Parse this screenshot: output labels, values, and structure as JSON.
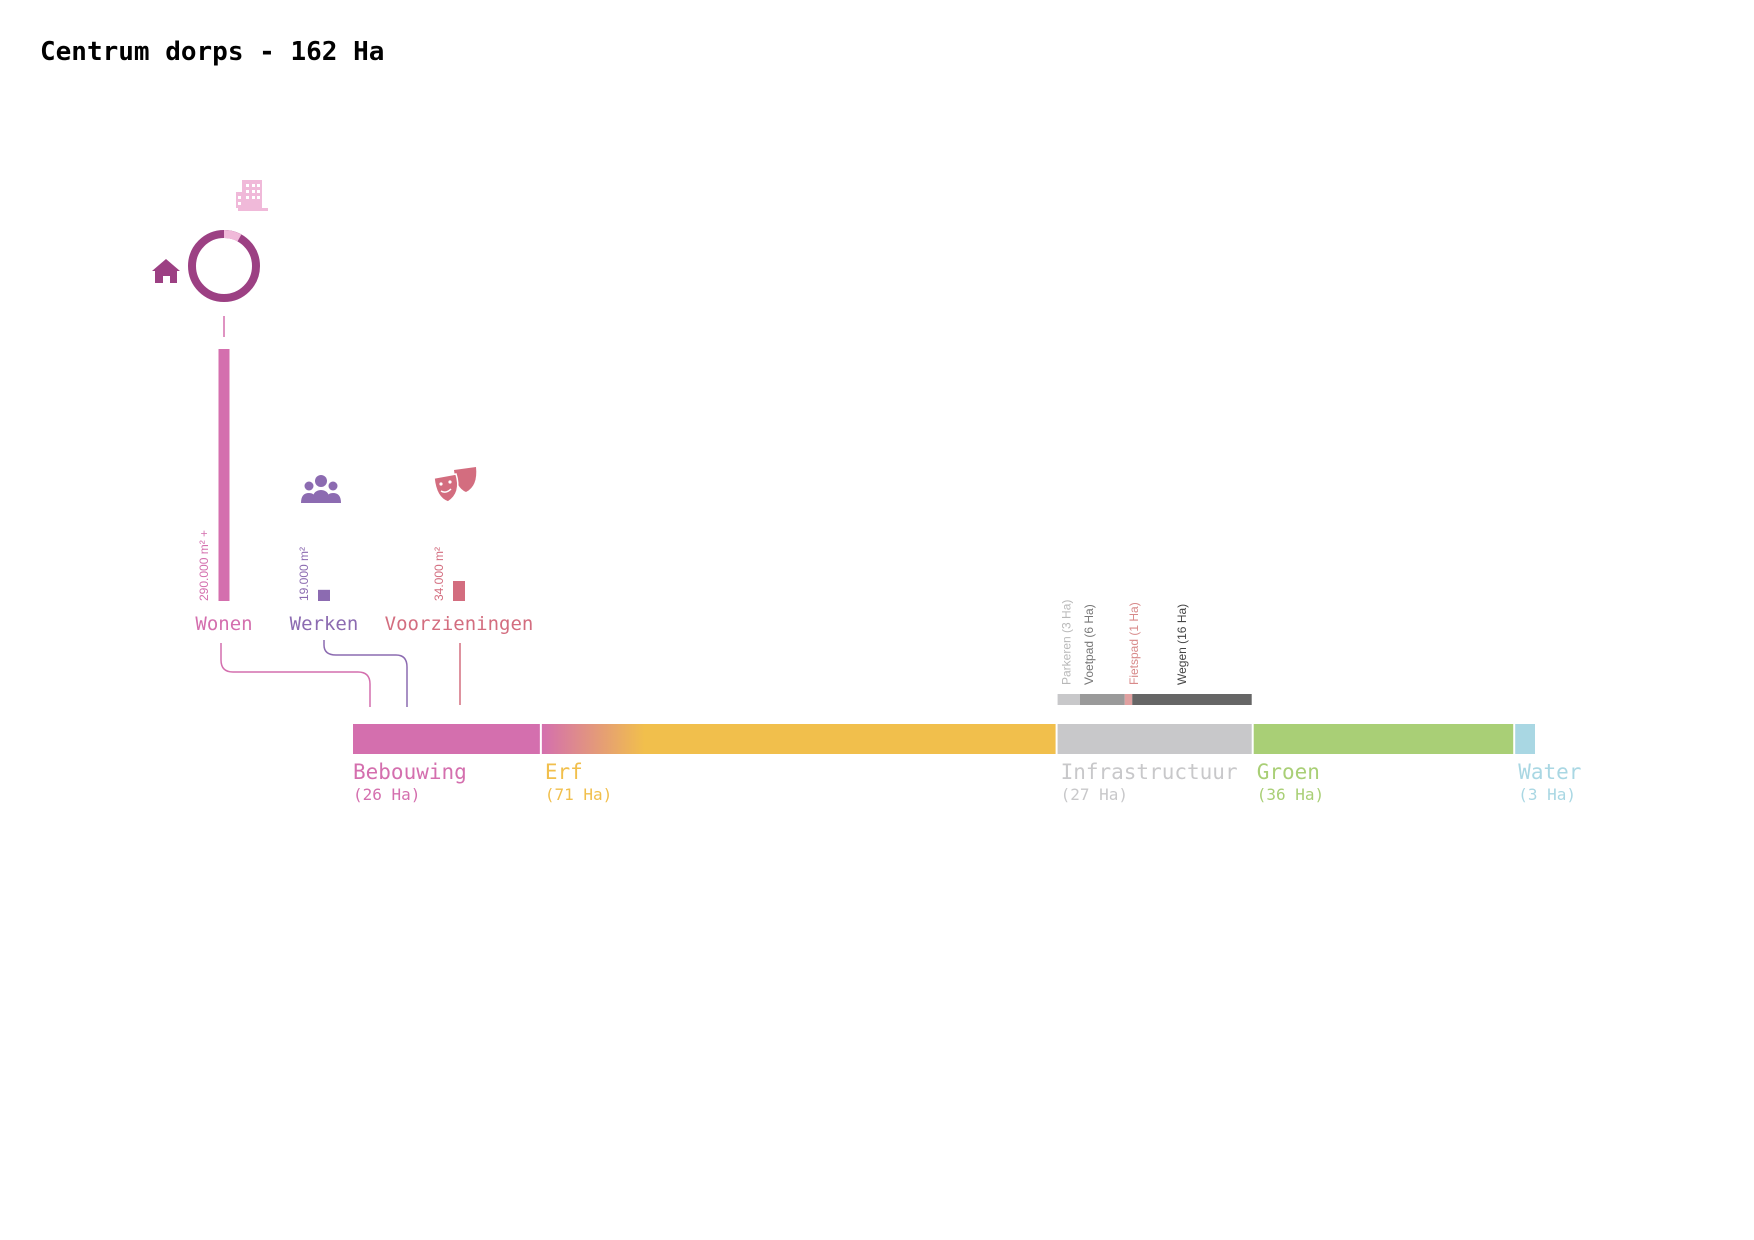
{
  "title": "Centrum dorps - 162 Ha",
  "colors": {
    "bebouwing": "#d46fae",
    "erf": "#f1bf4c",
    "infrastructuur": "#c8c8ca",
    "groen": "#a9cf76",
    "water": "#a9d7e3",
    "wonen": "#d46fae",
    "werken": "#8c6bb1",
    "voorzieningen": "#d36d7f",
    "ring_dark": "#9c4083",
    "ring_light": "#f0b9d9",
    "parkeren": "#c8c8ca",
    "voetpad": "#9a9a9a",
    "fietspad": "#e0a0a0",
    "wegen": "#666666"
  },
  "icons": {
    "house": "house-icon",
    "office": "office-building-icon",
    "people": "people-group-icon",
    "masks": "theater-masks-icon"
  },
  "chart_data": {
    "type": "bar",
    "title": "Centrum dorps - 162 Ha",
    "land_use": [
      {
        "key": "bebouwing",
        "label": "Bebouwing",
        "ha_label": "(26 Ha)",
        "value": 26
      },
      {
        "key": "erf",
        "label": "Erf",
        "ha_label": "(71 Ha)",
        "value": 71
      },
      {
        "key": "infrastructuur",
        "label": "Infrastructuur",
        "ha_label": "(27 Ha)",
        "value": 27
      },
      {
        "key": "groen",
        "label": "Groen",
        "ha_label": "(36 Ha)",
        "value": 36
      },
      {
        "key": "water",
        "label": "Water",
        "ha_label": "(3 Ha)",
        "value": 3
      }
    ],
    "infrastructure_breakdown": [
      {
        "key": "parkeren",
        "label": "Parkeren (3 Ha)",
        "value": 3
      },
      {
        "key": "voetpad",
        "label": "Voetpad (6 Ha)",
        "value": 6
      },
      {
        "key": "fietspad",
        "label": "Fietspad (1 Ha)",
        "value": 1
      },
      {
        "key": "wegen",
        "label": "Wegen (16 Ha)",
        "value": 16
      }
    ],
    "floor_area": [
      {
        "key": "wonen",
        "label": "Wonen",
        "value_label": "290.000 m² +",
        "value": 290000
      },
      {
        "key": "werken",
        "label": "Werken",
        "value_label": "19.000 m²",
        "value": 19000
      },
      {
        "key": "voorzieningen",
        "label": "Voorzieningen",
        "value_label": "34.000 m²",
        "value": 34000
      }
    ],
    "housing_ring": {
      "residential_share": 0.92
    }
  }
}
